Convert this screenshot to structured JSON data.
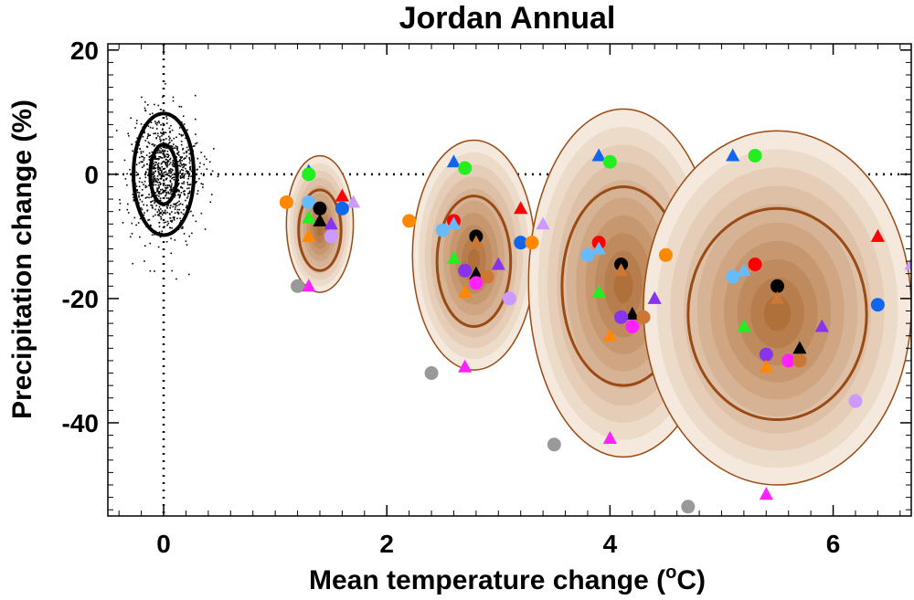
{
  "chart_data": {
    "type": "scatter",
    "title": "Jordan Annual",
    "xlabel_prefix": "Mean temperature change (",
    "xlabel_sup": "o",
    "xlabel_suffix": "C)",
    "ylabel": "Precipitation change (%)",
    "xlim": [
      -0.5,
      6.7
    ],
    "ylim": [
      -55,
      21
    ],
    "x_ticks": [
      0,
      2,
      4,
      6
    ],
    "y_ticks": [
      20,
      0,
      -20,
      -40
    ],
    "x_tick_labels": [
      "0",
      "2",
      "4",
      "6"
    ],
    "y_tick_labels": [
      "20",
      "0",
      "-20",
      "-40"
    ],
    "reference_lines": {
      "x": 0,
      "y": 0,
      "style": "dotted"
    },
    "natural_variability": {
      "center": [
        0,
        0
      ],
      "ellipses": [
        {
          "rx": 0.27,
          "ry": 9.8
        },
        {
          "rx": 0.12,
          "ry": 4.8
        }
      ],
      "scatter_spread": {
        "x_sd": 0.15,
        "y_sd": 5
      }
    },
    "projection_distributions": [
      {
        "center": [
          1.4,
          -8
        ],
        "rx": 0.3,
        "ry": 11,
        "inner": [
          0.19,
          6.5
        ],
        "peak": [
          1.4,
          -9
        ]
      },
      {
        "center": [
          2.78,
          -13
        ],
        "rx": 0.55,
        "ry": 18.5,
        "inner": [
          0.33,
          10.5
        ],
        "peak": [
          2.78,
          -14
        ]
      },
      {
        "center": [
          4.12,
          -17.5
        ],
        "rx": 0.85,
        "ry": 28,
        "inner": [
          0.55,
          16
        ],
        "peak": [
          4.12,
          -18
        ]
      },
      {
        "center": [
          5.5,
          -21.5
        ],
        "rx": 1.2,
        "ry": 28.5,
        "inner": [
          0.8,
          17
        ],
        "peak": [
          5.5,
          -22.5
        ]
      }
    ],
    "model_colors": {
      "red": "#ff0000",
      "green": "#22ee22",
      "blue": "#1166ee",
      "orange": "#ff8800",
      "lightblue": "#66bbff",
      "purple": "#8833ee",
      "magenta": "#ff22ff",
      "lavender": "#cc99ff",
      "gray": "#999999",
      "black": "#000000",
      "brown": "#cc7733"
    },
    "series": [
      {
        "points": [
          {
            "x": 1.3,
            "y": 0.5,
            "c": "blue",
            "m": "triangle"
          },
          {
            "x": 1.3,
            "y": 0,
            "c": "green",
            "m": "circle"
          },
          {
            "x": 1.1,
            "y": -4.5,
            "c": "orange",
            "m": "circle"
          },
          {
            "x": 1.3,
            "y": -4.5,
            "c": "lightblue",
            "m": "circle"
          },
          {
            "x": 1.6,
            "y": -3.5,
            "c": "red",
            "m": "triangle"
          },
          {
            "x": 1.7,
            "y": -4.5,
            "c": "lavender",
            "m": "triangle"
          },
          {
            "x": 1.6,
            "y": -5.5,
            "c": "blue",
            "m": "circle"
          },
          {
            "x": 1.4,
            "y": -5.5,
            "c": "black",
            "m": "circle"
          },
          {
            "x": 1.3,
            "y": -7,
            "c": "green",
            "m": "triangle"
          },
          {
            "x": 1.4,
            "y": -7.5,
            "c": "black",
            "m": "triangle"
          },
          {
            "x": 1.5,
            "y": -8,
            "c": "purple",
            "m": "triangle"
          },
          {
            "x": 1.3,
            "y": -10,
            "c": "orange",
            "m": "triangle"
          },
          {
            "x": 1.5,
            "y": -10,
            "c": "lavender",
            "m": "circle"
          },
          {
            "x": 1.2,
            "y": -18,
            "c": "gray",
            "m": "circle"
          },
          {
            "x": 1.3,
            "y": -18,
            "c": "magenta",
            "m": "triangle"
          }
        ]
      },
      {
        "points": [
          {
            "x": 2.6,
            "y": 2,
            "c": "blue",
            "m": "triangle"
          },
          {
            "x": 2.7,
            "y": 1,
            "c": "green",
            "m": "circle"
          },
          {
            "x": 2.2,
            "y": -7.5,
            "c": "orange",
            "m": "circle"
          },
          {
            "x": 2.6,
            "y": -7.5,
            "c": "red",
            "m": "circle"
          },
          {
            "x": 2.6,
            "y": -8,
            "c": "lightblue",
            "m": "triangle"
          },
          {
            "x": 2.5,
            "y": -9,
            "c": "lightblue",
            "m": "circle"
          },
          {
            "x": 3.2,
            "y": -5.5,
            "c": "red",
            "m": "triangle"
          },
          {
            "x": 3.4,
            "y": -8,
            "c": "lavender",
            "m": "triangle"
          },
          {
            "x": 2.8,
            "y": -10,
            "c": "black",
            "m": "circle"
          },
          {
            "x": 2.8,
            "y": -11,
            "c": "brown",
            "m": "triangle"
          },
          {
            "x": 3.2,
            "y": -11,
            "c": "blue",
            "m": "circle"
          },
          {
            "x": 3.3,
            "y": -11,
            "c": "orange",
            "m": "circle"
          },
          {
            "x": 2.6,
            "y": -13.5,
            "c": "green",
            "m": "triangle"
          },
          {
            "x": 3.0,
            "y": -14.5,
            "c": "purple",
            "m": "triangle"
          },
          {
            "x": 2.7,
            "y": -15.5,
            "c": "purple",
            "m": "circle"
          },
          {
            "x": 2.8,
            "y": -16,
            "c": "black",
            "m": "triangle"
          },
          {
            "x": 2.9,
            "y": -16.5,
            "c": "brown",
            "m": "circle"
          },
          {
            "x": 2.8,
            "y": -17.5,
            "c": "magenta",
            "m": "circle"
          },
          {
            "x": 2.7,
            "y": -19,
            "c": "orange",
            "m": "triangle"
          },
          {
            "x": 3.1,
            "y": -20,
            "c": "lavender",
            "m": "circle"
          },
          {
            "x": 2.7,
            "y": -31,
            "c": "magenta",
            "m": "triangle"
          },
          {
            "x": 2.4,
            "y": -32,
            "c": "gray",
            "m": "circle"
          }
        ]
      },
      {
        "points": [
          {
            "x": 3.9,
            "y": 3,
            "c": "blue",
            "m": "triangle"
          },
          {
            "x": 4.0,
            "y": 2,
            "c": "green",
            "m": "circle"
          },
          {
            "x": 3.9,
            "y": -11,
            "c": "red",
            "m": "circle"
          },
          {
            "x": 3.9,
            "y": -12,
            "c": "lightblue",
            "m": "triangle"
          },
          {
            "x": 3.8,
            "y": -13,
            "c": "lightblue",
            "m": "circle"
          },
          {
            "x": 4.5,
            "y": -13,
            "c": "orange",
            "m": "circle"
          },
          {
            "x": 4.1,
            "y": -14.5,
            "c": "black",
            "m": "circle"
          },
          {
            "x": 4.1,
            "y": -15.5,
            "c": "brown",
            "m": "triangle"
          },
          {
            "x": 3.9,
            "y": -19,
            "c": "green",
            "m": "triangle"
          },
          {
            "x": 4.4,
            "y": -20,
            "c": "purple",
            "m": "triangle"
          },
          {
            "x": 4.2,
            "y": -22.5,
            "c": "black",
            "m": "triangle"
          },
          {
            "x": 4.1,
            "y": -23,
            "c": "purple",
            "m": "circle"
          },
          {
            "x": 4.3,
            "y": -23,
            "c": "brown",
            "m": "circle"
          },
          {
            "x": 4.2,
            "y": -24.5,
            "c": "magenta",
            "m": "circle"
          },
          {
            "x": 4.0,
            "y": -26,
            "c": "orange",
            "m": "triangle"
          },
          {
            "x": 4.0,
            "y": -42.5,
            "c": "magenta",
            "m": "triangle"
          },
          {
            "x": 3.5,
            "y": -43.5,
            "c": "gray",
            "m": "circle"
          }
        ]
      },
      {
        "points": [
          {
            "x": 5.1,
            "y": 3,
            "c": "blue",
            "m": "triangle"
          },
          {
            "x": 5.3,
            "y": 3,
            "c": "green",
            "m": "circle"
          },
          {
            "x": 6.4,
            "y": -10,
            "c": "red",
            "m": "triangle"
          },
          {
            "x": 6.7,
            "y": -14.5,
            "c": "lavender",
            "m": "triangle"
          },
          {
            "x": 5.3,
            "y": -14.5,
            "c": "red",
            "m": "circle"
          },
          {
            "x": 5.2,
            "y": -15.5,
            "c": "lightblue",
            "m": "triangle"
          },
          {
            "x": 5.1,
            "y": -16.5,
            "c": "lightblue",
            "m": "circle"
          },
          {
            "x": 5.5,
            "y": -18,
            "c": "black",
            "m": "circle"
          },
          {
            "x": 5.5,
            "y": -20,
            "c": "brown",
            "m": "triangle"
          },
          {
            "x": 6.4,
            "y": -21,
            "c": "blue",
            "m": "circle"
          },
          {
            "x": 5.2,
            "y": -24.5,
            "c": "green",
            "m": "triangle"
          },
          {
            "x": 5.9,
            "y": -24.5,
            "c": "purple",
            "m": "triangle"
          },
          {
            "x": 5.7,
            "y": -28,
            "c": "black",
            "m": "triangle"
          },
          {
            "x": 5.4,
            "y": -29,
            "c": "purple",
            "m": "circle"
          },
          {
            "x": 5.6,
            "y": -30,
            "c": "magenta",
            "m": "circle"
          },
          {
            "x": 5.7,
            "y": -30,
            "c": "brown",
            "m": "circle"
          },
          {
            "x": 5.4,
            "y": -31,
            "c": "orange",
            "m": "triangle"
          },
          {
            "x": 6.2,
            "y": -36.5,
            "c": "lavender",
            "m": "circle"
          },
          {
            "x": 5.4,
            "y": -51.5,
            "c": "magenta",
            "m": "triangle"
          },
          {
            "x": 4.7,
            "y": -53.5,
            "c": "gray",
            "m": "circle"
          }
        ]
      }
    ]
  }
}
